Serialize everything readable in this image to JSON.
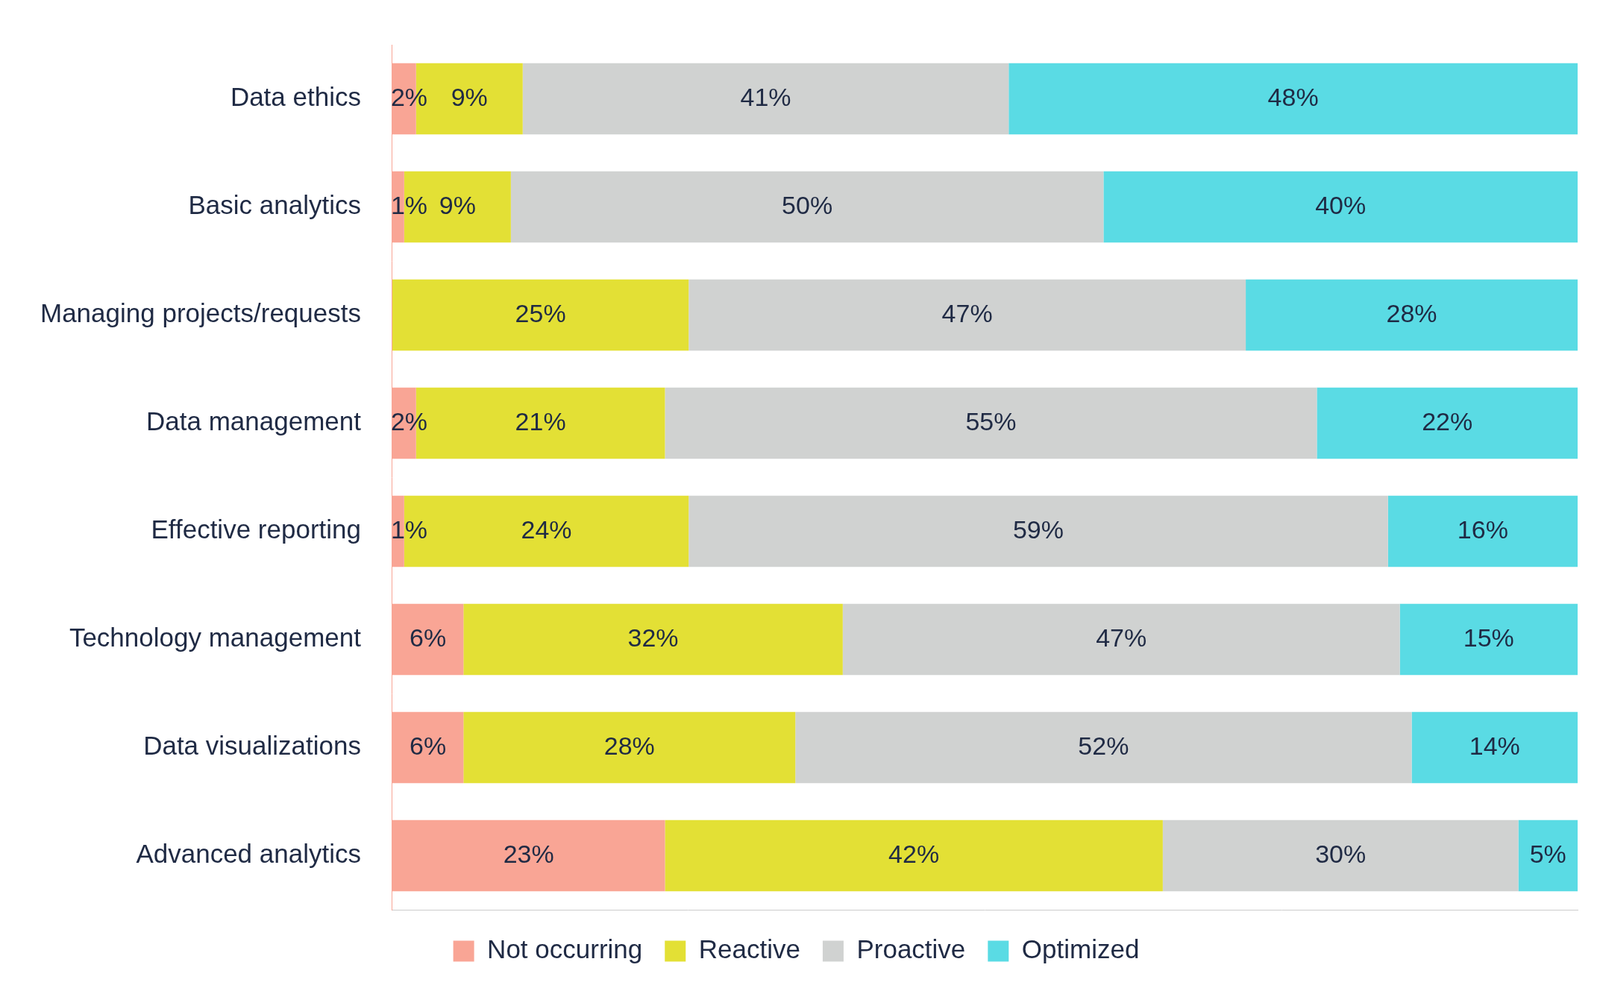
{
  "chart_data": {
    "type": "bar",
    "orientation": "horizontal",
    "stacked": true,
    "data_labels": true,
    "legend": "bottom",
    "grid": false,
    "tick_labels": "y",
    "categories": [
      "Data ethics",
      "Basic analytics",
      "Managing projects/requests",
      "Data management",
      "Effective reporting",
      "Technology management",
      "Data visualizations",
      "Advanced analytics"
    ],
    "xlim": [
      0,
      100
    ],
    "series": [
      {
        "name": "Not occurring",
        "color": "#f9a595",
        "values": [
          2,
          1,
          0,
          2,
          1,
          6,
          6,
          23
        ],
        "value_labels": [
          "2%",
          "1%",
          null,
          "2%",
          "1%",
          "6%",
          "6%",
          "23%"
        ]
      },
      {
        "name": "Reactive",
        "color": "#e3e035",
        "values": [
          9,
          9,
          25,
          21,
          24,
          32,
          28,
          42
        ],
        "value_labels": [
          "9%",
          "9%",
          "25%",
          "21%",
          "24%",
          "32%",
          "28%",
          "42%"
        ]
      },
      {
        "name": "Proactive",
        "color": "#d0d2d1",
        "values": [
          41,
          50,
          47,
          55,
          59,
          47,
          52,
          30
        ],
        "value_labels": [
          "41%",
          "50%",
          "47%",
          "55%",
          "59%",
          "47%",
          "52%",
          "30%"
        ]
      },
      {
        "name": "Optimized",
        "color": "#5adbe4",
        "values": [
          48,
          40,
          28,
          22,
          16,
          15,
          14,
          5
        ],
        "value_labels": [
          "48%",
          "40%",
          "28%",
          "22%",
          "16%",
          "15%",
          "14%",
          "5%"
        ]
      }
    ]
  }
}
